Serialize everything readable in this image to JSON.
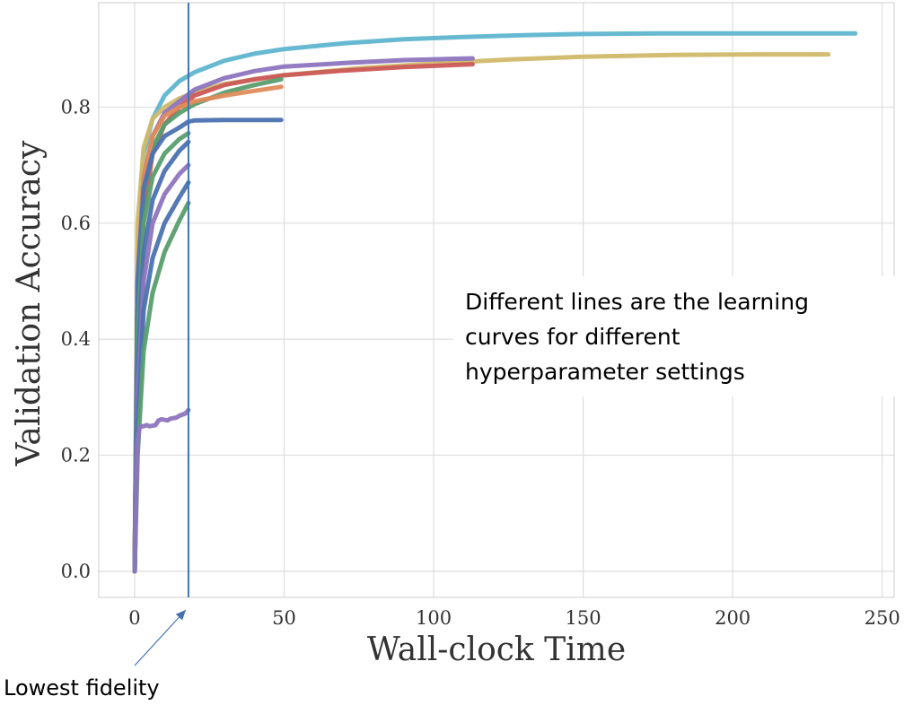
{
  "chart_data": {
    "type": "line",
    "xlabel": "Wall-clock Time",
    "ylabel": "Validation Accuracy",
    "xlim": [
      -12,
      254
    ],
    "ylim": [
      -0.045,
      0.98
    ],
    "xticks": [
      0,
      50,
      100,
      150,
      200,
      250
    ],
    "yticks": [
      0.0,
      0.2,
      0.4,
      0.6,
      0.8
    ],
    "ytick_labels": [
      "0.0",
      "0.2",
      "0.4",
      "0.6",
      "0.8"
    ],
    "grid": true,
    "series": [
      {
        "color": "#5FB5CF",
        "x": [
          0,
          1,
          3,
          6,
          10,
          15,
          20,
          30,
          40,
          50,
          70,
          90,
          110,
          130,
          150,
          175,
          200,
          225,
          241
        ],
        "y": [
          0.0,
          0.55,
          0.72,
          0.78,
          0.82,
          0.845,
          0.86,
          0.88,
          0.892,
          0.9,
          0.91,
          0.917,
          0.921,
          0.924,
          0.926,
          0.927,
          0.927,
          0.927,
          0.927
        ]
      },
      {
        "color": "#D0B96A",
        "x": [
          0,
          1,
          3,
          6,
          10,
          15,
          20,
          30,
          50,
          75,
          100,
          125,
          150,
          180,
          210,
          232
        ],
        "y": [
          0.0,
          0.6,
          0.73,
          0.78,
          0.8,
          0.815,
          0.825,
          0.84,
          0.855,
          0.867,
          0.875,
          0.882,
          0.887,
          0.89,
          0.891,
          0.891
        ]
      },
      {
        "color": "#8D75BE",
        "x": [
          0,
          1,
          3,
          6,
          10,
          15,
          20,
          30,
          40,
          50,
          70,
          90,
          113
        ],
        "y": [
          0.0,
          0.5,
          0.68,
          0.75,
          0.79,
          0.81,
          0.83,
          0.85,
          0.862,
          0.87,
          0.876,
          0.881,
          0.884
        ]
      },
      {
        "color": "#CC5A5A",
        "x": [
          0,
          1,
          3,
          6,
          10,
          15,
          20,
          30,
          40,
          50,
          70,
          90,
          113
        ],
        "y": [
          0.0,
          0.4,
          0.62,
          0.72,
          0.77,
          0.8,
          0.82,
          0.838,
          0.848,
          0.855,
          0.863,
          0.869,
          0.874
        ]
      },
      {
        "color": "#5A9E6F",
        "x": [
          0,
          1,
          3,
          6,
          10,
          15,
          20,
          30,
          40,
          49
        ],
        "y": [
          0.0,
          0.45,
          0.65,
          0.73,
          0.77,
          0.79,
          0.805,
          0.825,
          0.838,
          0.848
        ]
      },
      {
        "color": "#E08B5A",
        "x": [
          0,
          1,
          3,
          6,
          10,
          15,
          20,
          30,
          40,
          49
        ],
        "y": [
          0.0,
          0.5,
          0.68,
          0.75,
          0.785,
          0.8,
          0.81,
          0.82,
          0.828,
          0.835
        ]
      },
      {
        "color": "#4C72B0",
        "x": [
          0,
          1,
          3,
          6,
          10,
          15,
          18,
          20,
          30,
          40,
          49
        ],
        "y": [
          0.0,
          0.5,
          0.66,
          0.72,
          0.75,
          0.765,
          0.775,
          0.777,
          0.778,
          0.778,
          0.778
        ]
      },
      {
        "color": "#5A9E6F",
        "x": [
          0,
          1,
          3,
          6,
          10,
          15,
          18
        ],
        "y": [
          0.0,
          0.4,
          0.6,
          0.68,
          0.72,
          0.745,
          0.755
        ]
      },
      {
        "color": "#4C72B0",
        "x": [
          0,
          1,
          3,
          6,
          10,
          15,
          18
        ],
        "y": [
          0.0,
          0.35,
          0.55,
          0.64,
          0.69,
          0.725,
          0.74
        ]
      },
      {
        "color": "#8D75BE",
        "x": [
          0,
          1,
          3,
          6,
          10,
          15,
          18
        ],
        "y": [
          0.0,
          0.3,
          0.5,
          0.6,
          0.65,
          0.685,
          0.7
        ]
      },
      {
        "color": "#4C72B0",
        "x": [
          0,
          1,
          3,
          6,
          10,
          15,
          18
        ],
        "y": [
          0.0,
          0.25,
          0.45,
          0.54,
          0.6,
          0.645,
          0.67
        ]
      },
      {
        "color": "#5A9E6F",
        "x": [
          0,
          1,
          3,
          6,
          10,
          15,
          18
        ],
        "y": [
          0.0,
          0.2,
          0.38,
          0.48,
          0.55,
          0.605,
          0.635
        ]
      },
      {
        "color": "#8D75BE",
        "x": [
          0,
          0.5,
          1,
          1.5,
          2,
          3,
          4,
          5,
          7,
          8,
          9,
          11,
          12,
          14,
          15,
          17,
          18
        ],
        "y": [
          0.0,
          0.12,
          0.22,
          0.245,
          0.25,
          0.25,
          0.252,
          0.25,
          0.252,
          0.26,
          0.262,
          0.26,
          0.263,
          0.265,
          0.268,
          0.272,
          0.278
        ]
      }
    ]
  },
  "annotations": {
    "note_lines": [
      "Different lines are the learning",
      "curves for different",
      "hyperparameter settings"
    ],
    "fidelity_label": "Lowest fidelity",
    "fidelity_x": 18
  },
  "colors": {
    "grid": "#DEDEDE",
    "frame": "#CCCCCC",
    "marker_line": "#4472B0"
  }
}
